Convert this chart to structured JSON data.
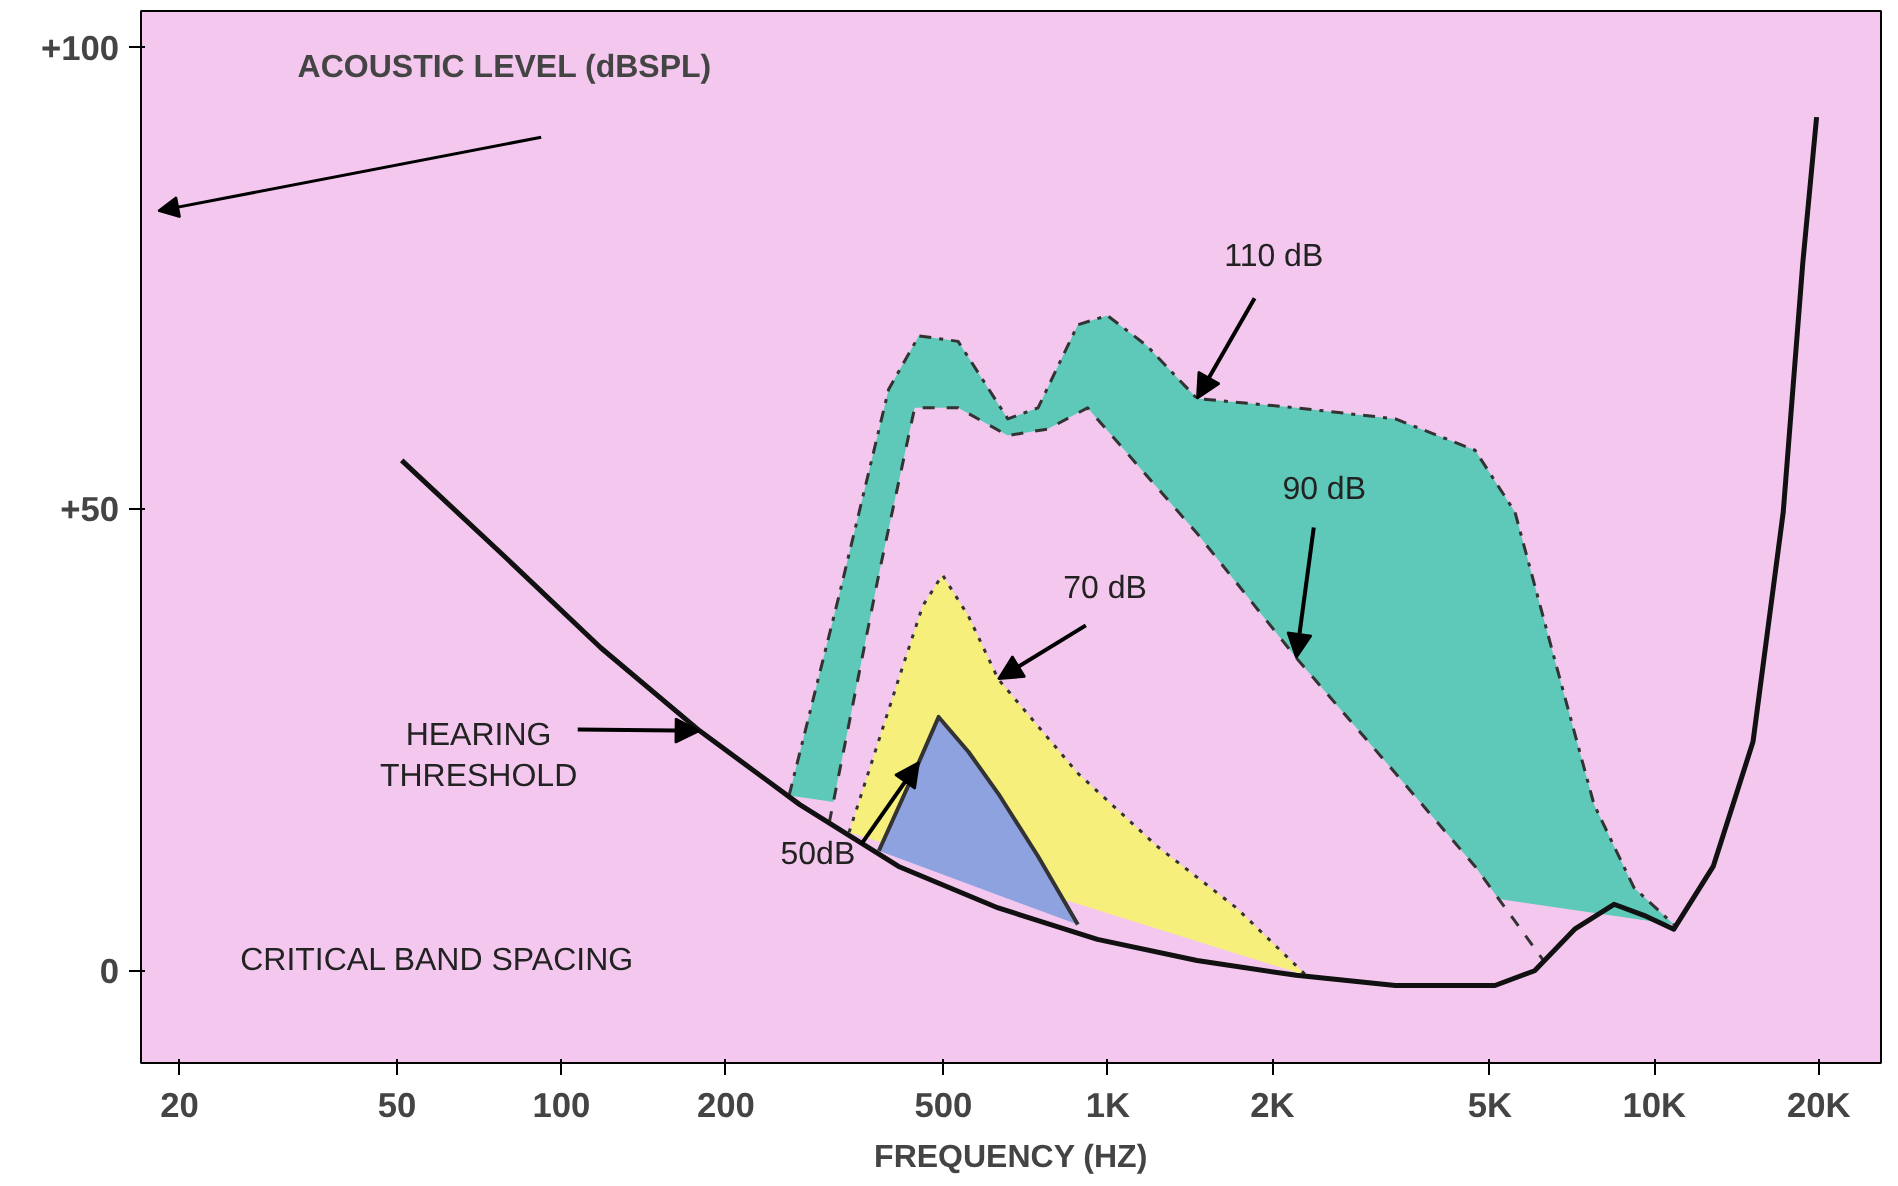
{
  "chart_data": {
    "type": "area",
    "xlabel": "FREQUENCY (HZ)",
    "ylabel": "ACOUSTIC LEVEL (dBSPL)",
    "log": "x",
    "xlim": [
      17,
      26000
    ],
    "ylim": [
      -10,
      104
    ],
    "xticks": [
      20,
      50,
      100,
      200,
      500,
      {
        "value": 1000,
        "label": "1K"
      },
      {
        "value": 2000,
        "label": "2K"
      },
      {
        "value": 5000,
        "label": "5K"
      },
      {
        "value": 10000,
        "label": "10K"
      },
      {
        "value": 20000,
        "label": "20K"
      }
    ],
    "yticks": [
      0,
      {
        "value": 50,
        "label": "+50"
      },
      {
        "value": 100,
        "label": "+100"
      }
    ],
    "grid": false,
    "series": [
      {
        "color": "#5ec9b8",
        "line_style": "dashdot",
        "x": [
          261,
          322,
          397,
          451,
          532,
          656,
          745,
          881,
          998,
          1180,
          1456,
          2212,
          3360,
          4700,
          5560,
          6560,
          7760,
          9180,
          10860
        ],
        "values": [
          19,
          40.6,
          63,
          68.8,
          68.2,
          59.8,
          61,
          70,
          71,
          67.7,
          62,
          61,
          59.8,
          56.4,
          49.7,
          33.9,
          18,
          9,
          5
        ]
      },
      {
        "color": "#f4c8ee",
        "line_style": "dashed",
        "x": [
          309,
          381,
          443,
          532,
          656,
          776,
          918,
          1456,
          2212,
          3360,
          4700,
          6290
        ],
        "values": [
          16,
          43,
          61,
          61,
          58,
          58.7,
          61,
          47.4,
          33.9,
          21.4,
          11.3,
          1
        ]
      },
      {
        "color": "#f7ef7c",
        "line_style": "dotted",
        "x": [
          336,
          414,
          458,
          498,
          556,
          630,
          881,
          1230,
          1720,
          2306
        ],
        "values": [
          15,
          31.6,
          39.5,
          42.9,
          38.4,
          31.6,
          21.4,
          13.5,
          6.8,
          -0.5
        ]
      },
      {
        "color": "#8ea2e0",
        "line_style": "solid",
        "x": [
          381,
          451,
          490,
          556,
          630,
          745,
          881
        ],
        "values": [
          13,
          22.6,
          27.5,
          23.7,
          19.2,
          12.4,
          5
        ]
      },
      {
        "type": "line",
        "color": "#111111",
        "line_style": "solid",
        "x": [
          51,
          78,
          118,
          179,
          273,
          414,
          630,
          957,
          1456,
          2212,
          3360,
          5110,
          6040,
          7150,
          8440,
          9570,
          10860,
          12820,
          15160,
          17220,
          18700,
          19820
        ],
        "values": [
          55.3,
          45.1,
          35,
          26,
          18,
          11.3,
          6.8,
          3.4,
          1.1,
          -0.5,
          -1.6,
          -1.6,
          0,
          4.5,
          7.2,
          6,
          4.5,
          11.3,
          24.8,
          49.7,
          76.7,
          92.5
        ]
      }
    ],
    "annotations": [
      {
        "text": "110 dB",
        "x": 1456,
        "y": 62
      },
      {
        "text": "90 dB",
        "x": 2212,
        "y": 33.9
      },
      {
        "text": "70 dB",
        "x": 630,
        "y": 31.6
      },
      {
        "text": "50dB",
        "x": 451,
        "y": 22.6
      },
      {
        "text": "HEARING\nTHRESHOLD",
        "x": 179,
        "y": 26
      },
      "CRITICAL BAND SPACING"
    ]
  }
}
